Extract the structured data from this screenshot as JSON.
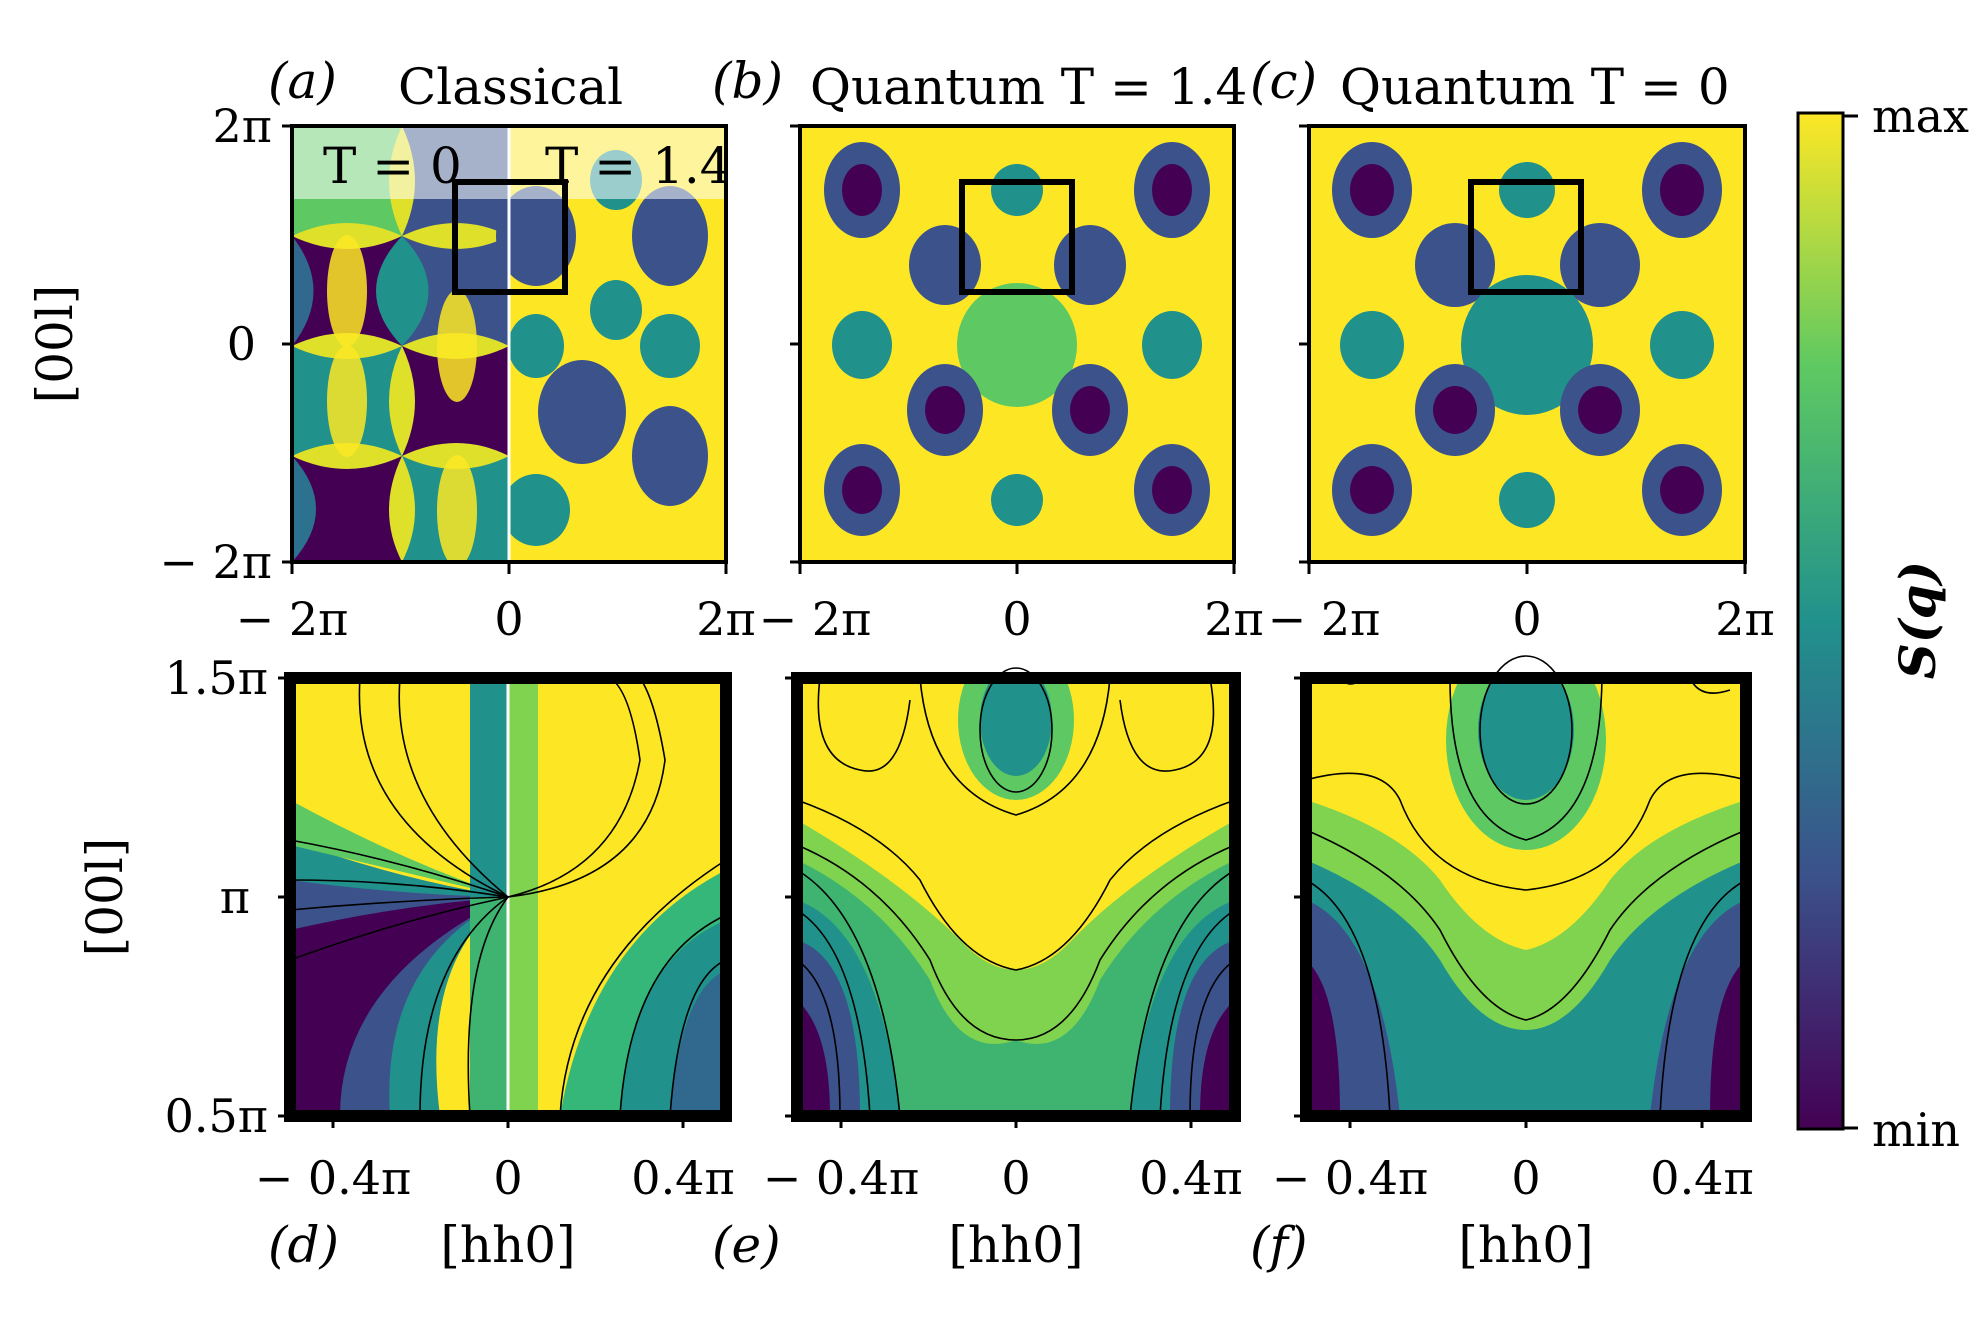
{
  "chart_data": [
    {
      "type": "heatmap",
      "panel": "(a)",
      "title": "Classical",
      "annotations": [
        "T = 0",
        "T = 1.4"
      ],
      "ylabel": "[00l]",
      "xticks": [
        "− 2π",
        "0",
        "2π"
      ],
      "yticks": [
        "2π",
        "0",
        "− 2π"
      ],
      "xlim": [
        "-2π",
        "2π"
      ],
      "ylim": [
        "-2π",
        "2π"
      ],
      "highlight_box": {
        "h": [
          -0.5,
          0.5
        ],
        "l": [
          0.5,
          1.5
        ],
        "unit": "π"
      },
      "split": "left half T = 0, right half T = 1.4"
    },
    {
      "type": "heatmap",
      "panel": "(b)",
      "title": "Quantum  T = 1.4",
      "xticks": [
        "− 2π",
        "0",
        "2π"
      ],
      "xlim": [
        "-2π",
        "2π"
      ],
      "ylim": [
        "-2π",
        "2π"
      ],
      "highlight_box": {
        "h": [
          -0.5,
          0.5
        ],
        "l": [
          0.5,
          1.5
        ],
        "unit": "π"
      }
    },
    {
      "type": "heatmap",
      "panel": "(c)",
      "title": "Quantum  T = 0",
      "xticks": [
        "− 2π",
        "0",
        "2π"
      ],
      "xlim": [
        "-2π",
        "2π"
      ],
      "ylim": [
        "-2π",
        "2π"
      ],
      "highlight_box": {
        "h": [
          -0.5,
          0.5
        ],
        "l": [
          0.5,
          1.5
        ],
        "unit": "π"
      }
    },
    {
      "type": "heatmap",
      "panel": "(d)",
      "xlabel": "[hh0]",
      "ylabel": "[00l]",
      "xticks": [
        "− 0.4π",
        "0",
        "0.4π"
      ],
      "yticks": [
        "1.5π",
        "π",
        "0.5π"
      ],
      "xlim": [
        "-0.5π",
        "0.5π"
      ],
      "ylim": [
        "0.5π",
        "1.5π"
      ],
      "contours": true
    },
    {
      "type": "heatmap",
      "panel": "(e)",
      "xlabel": "[hh0]",
      "xticks": [
        "− 0.4π",
        "0",
        "0.4π"
      ],
      "xlim": [
        "-0.5π",
        "0.5π"
      ],
      "ylim": [
        "0.5π",
        "1.5π"
      ],
      "contours": true
    },
    {
      "type": "heatmap",
      "panel": "(f)",
      "xlabel": "[hh0]",
      "xticks": [
        "− 0.4π",
        "0",
        "0.4π"
      ],
      "xlim": [
        "-0.5π",
        "0.5π"
      ],
      "ylim": [
        "0.5π",
        "1.5π"
      ],
      "contours": true
    }
  ],
  "colorbar": {
    "label": "S(q)",
    "max_label": "max",
    "min_label": "min",
    "colormap": [
      "#440154",
      "#3b528b",
      "#21918c",
      "#5ec962",
      "#fde725"
    ]
  }
}
